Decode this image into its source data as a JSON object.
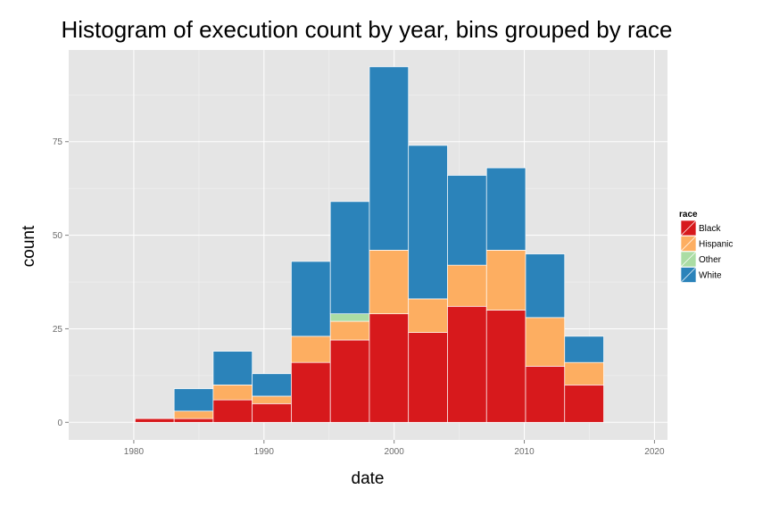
{
  "chart_data": {
    "type": "bar",
    "stacked": true,
    "title": "Histogram of execution count by year, bins grouped by race",
    "xlabel": "date",
    "ylabel": "count",
    "xlim": [
      1975,
      2021
    ],
    "ylim": [
      -4.7,
      99.5
    ],
    "xticks": [
      1980,
      1990,
      2000,
      2010,
      2020
    ],
    "yticks": [
      0,
      25,
      50,
      75
    ],
    "bins": [
      [
        1980.1,
        1983.1
      ],
      [
        1983.1,
        1986.1
      ],
      [
        1986.1,
        1989.1
      ],
      [
        1989.1,
        1992.1
      ],
      [
        1992.1,
        1995.1
      ],
      [
        1995.1,
        1998.1
      ],
      [
        1998.1,
        2001.1
      ],
      [
        2001.1,
        2004.1
      ],
      [
        2004.1,
        2007.1
      ],
      [
        2007.1,
        2010.1
      ],
      [
        2010.1,
        2013.1
      ],
      [
        2013.1,
        2016.1
      ]
    ],
    "series": [
      {
        "name": "Black",
        "color": "#d7191c",
        "values": [
          1,
          1,
          6,
          5,
          16,
          22,
          29,
          24,
          31,
          30,
          15,
          10
        ]
      },
      {
        "name": "Hispanic",
        "color": "#fdae61",
        "values": [
          0,
          2,
          4,
          2,
          7,
          5,
          17,
          9,
          11,
          16,
          13,
          6
        ]
      },
      {
        "name": "Other",
        "color": "#abdda4",
        "values": [
          0,
          0,
          0,
          0,
          0,
          2,
          0,
          0,
          0,
          0,
          0,
          0
        ]
      },
      {
        "name": "White",
        "color": "#2b83ba",
        "values": [
          0,
          6,
          9,
          6,
          20,
          30,
          49,
          41,
          24,
          22,
          17,
          7
        ]
      }
    ],
    "legend": {
      "title": "race",
      "position": "right"
    },
    "grid": true,
    "panel_background": "#e5e5e5",
    "grid_color": "#ffffff"
  }
}
